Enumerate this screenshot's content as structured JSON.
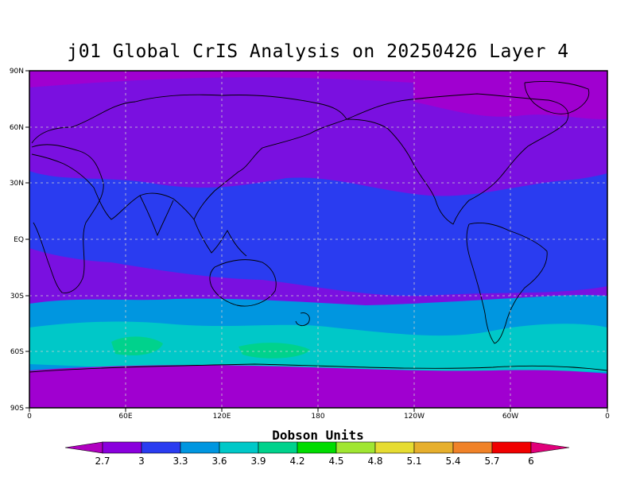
{
  "title": "j01 Global CrIS Analysis on 20250426 Layer 4",
  "axes": {
    "x_ticks": [
      "0",
      "60E",
      "120E",
      "180",
      "120W",
      "60W",
      "0"
    ],
    "y_ticks": [
      "90N",
      "60N",
      "30N",
      "EQ",
      "30S",
      "60S",
      "90S"
    ]
  },
  "colorbar": {
    "title": "Dobson Units",
    "labels": [
      "2.7",
      "3",
      "3.3",
      "3.6",
      "3.9",
      "4.2",
      "4.5",
      "4.8",
      "5.1",
      "5.4",
      "5.7",
      "6"
    ],
    "under_color": "#b000c0",
    "over_color": "#e0007a",
    "colors": [
      "#8a00dd",
      "#2a3cf0",
      "#0096e0",
      "#00c8c8",
      "#00d28c",
      "#00dc00",
      "#a0e632",
      "#e6dc32",
      "#e6af2d",
      "#f08228",
      "#f00000"
    ]
  },
  "map_colors": {
    "polar_band": "#a000d0",
    "mid_band": "#7a10e0",
    "tropics_band": "#2a3cf0",
    "southern_band": "#0096e0",
    "southern_ring": "#00c8c8",
    "southern_patch": "#00d28c",
    "coastline": "#000000",
    "grid": "#cfcfcf"
  }
}
